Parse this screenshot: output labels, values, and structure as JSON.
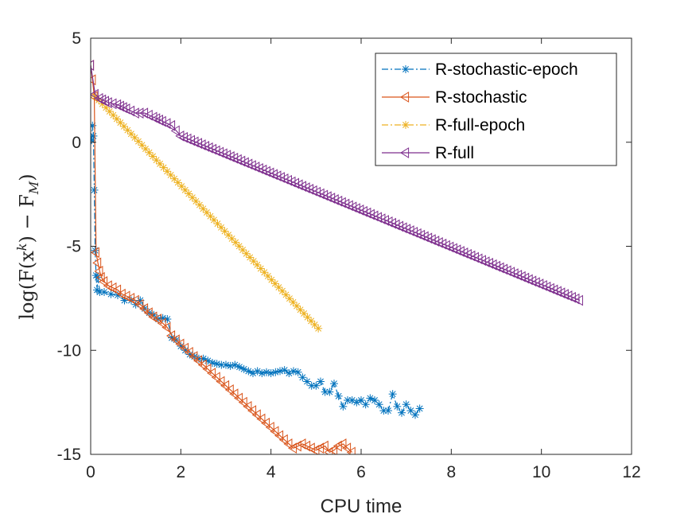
{
  "chart_data": {
    "type": "line",
    "title": "",
    "xlabel": "CPU time",
    "ylabel": "log(F(x^k) − F_M)",
    "ylabel_parts": {
      "lhs": "log(F(x",
      "sup": "k",
      "mid": ") − F",
      "sub": "M",
      "rhs": ")"
    },
    "xlim": [
      0,
      12
    ],
    "ylim": [
      -15,
      5
    ],
    "xticks": [
      0,
      2,
      4,
      6,
      8,
      10,
      12
    ],
    "yticks": [
      5,
      0,
      -5,
      -10,
      -15
    ],
    "xtick_labels": [
      "0",
      "2",
      "4",
      "6",
      "8",
      "10",
      "12"
    ],
    "ytick_labels": [
      "5",
      "0",
      "-5",
      "-10",
      "-15"
    ],
    "grid": false,
    "legend_position": "top-right",
    "series": [
      {
        "name": "R-stochastic-epoch",
        "color": "#0072BD",
        "line_style": "dashdot",
        "marker": "asterisk",
        "points": [
          [
            0.02,
            0.1
          ],
          [
            0.04,
            0.8
          ],
          [
            0.06,
            0.3
          ],
          [
            0.08,
            -2.3
          ],
          [
            0.1,
            -5.2
          ],
          [
            0.12,
            -6.4
          ],
          [
            0.14,
            -7.1
          ],
          [
            0.16,
            -6.5
          ],
          [
            0.2,
            -7.2
          ],
          [
            0.3,
            -7.2
          ],
          [
            0.45,
            -7.3
          ],
          [
            0.6,
            -7.35
          ],
          [
            0.75,
            -7.6
          ],
          [
            0.9,
            -7.6
          ],
          [
            1.0,
            -7.8
          ],
          [
            1.1,
            -7.6
          ],
          [
            1.2,
            -8.0
          ],
          [
            1.3,
            -8.2
          ],
          [
            1.4,
            -8.3
          ],
          [
            1.5,
            -8.5
          ],
          [
            1.6,
            -8.45
          ],
          [
            1.7,
            -8.5
          ],
          [
            1.8,
            -9.4
          ],
          [
            1.9,
            -9.5
          ],
          [
            2.0,
            -9.8
          ],
          [
            2.1,
            -10.0
          ],
          [
            2.2,
            -10.2
          ],
          [
            2.3,
            -10.3
          ],
          [
            2.4,
            -10.4
          ],
          [
            2.5,
            -10.4
          ],
          [
            2.6,
            -10.5
          ],
          [
            2.7,
            -10.6
          ],
          [
            2.8,
            -10.65
          ],
          [
            2.9,
            -10.7
          ],
          [
            3.0,
            -10.7
          ],
          [
            3.1,
            -10.75
          ],
          [
            3.2,
            -10.7
          ],
          [
            3.3,
            -10.8
          ],
          [
            3.4,
            -10.9
          ],
          [
            3.5,
            -11.0
          ],
          [
            3.6,
            -11.1
          ],
          [
            3.7,
            -11.0
          ],
          [
            3.8,
            -11.1
          ],
          [
            3.9,
            -11.05
          ],
          [
            4.0,
            -11.1
          ],
          [
            4.1,
            -11.05
          ],
          [
            4.2,
            -11.0
          ],
          [
            4.3,
            -10.95
          ],
          [
            4.4,
            -11.1
          ],
          [
            4.5,
            -11.0
          ],
          [
            4.6,
            -11.05
          ],
          [
            4.7,
            -11.3
          ],
          [
            4.8,
            -11.5
          ],
          [
            4.9,
            -11.7
          ],
          [
            5.0,
            -11.7
          ],
          [
            5.1,
            -11.5
          ],
          [
            5.2,
            -12.0
          ],
          [
            5.3,
            -12.0
          ],
          [
            5.4,
            -11.6
          ],
          [
            5.5,
            -12.2
          ],
          [
            5.6,
            -12.7
          ],
          [
            5.7,
            -12.4
          ],
          [
            5.8,
            -12.4
          ],
          [
            5.9,
            -12.5
          ],
          [
            6.0,
            -12.4
          ],
          [
            6.1,
            -12.6
          ],
          [
            6.2,
            -12.3
          ],
          [
            6.3,
            -12.4
          ],
          [
            6.4,
            -12.6
          ],
          [
            6.5,
            -12.9
          ],
          [
            6.6,
            -12.9
          ],
          [
            6.7,
            -12.1
          ],
          [
            6.8,
            -12.7
          ],
          [
            6.9,
            -13.0
          ],
          [
            7.0,
            -12.6
          ],
          [
            7.1,
            -12.9
          ],
          [
            7.2,
            -13.1
          ],
          [
            7.3,
            -12.8
          ]
        ]
      },
      {
        "name": "R-stochastic",
        "color": "#D95319",
        "line_style": "solid",
        "marker": "triangle-left",
        "points": [
          [
            0.0,
            3.7
          ],
          [
            0.04,
            3.0
          ],
          [
            0.08,
            2.2
          ],
          [
            0.12,
            -5.3
          ],
          [
            0.16,
            -5.8
          ],
          [
            0.2,
            -6.2
          ],
          [
            0.24,
            -6.5
          ],
          [
            0.3,
            -6.7
          ],
          [
            0.4,
            -6.9
          ],
          [
            0.5,
            -7.0
          ],
          [
            0.6,
            -7.1
          ],
          [
            0.7,
            -7.3
          ],
          [
            0.8,
            -7.4
          ],
          [
            0.9,
            -7.5
          ],
          [
            1.0,
            -7.6
          ],
          [
            1.1,
            -7.8
          ],
          [
            1.2,
            -8.0
          ],
          [
            1.3,
            -8.2
          ],
          [
            1.4,
            -8.4
          ],
          [
            1.5,
            -8.5
          ],
          [
            1.6,
            -8.7
          ],
          [
            1.7,
            -8.9
          ],
          [
            1.8,
            -9.3
          ],
          [
            1.9,
            -9.5
          ],
          [
            2.0,
            -9.7
          ],
          [
            2.1,
            -9.9
          ],
          [
            2.2,
            -10.1
          ],
          [
            2.3,
            -10.3
          ],
          [
            2.4,
            -10.5
          ],
          [
            2.5,
            -10.7
          ],
          [
            2.6,
            -10.9
          ],
          [
            2.7,
            -11.1
          ],
          [
            2.8,
            -11.3
          ],
          [
            2.9,
            -11.5
          ],
          [
            3.0,
            -11.7
          ],
          [
            3.1,
            -11.9
          ],
          [
            3.2,
            -12.1
          ],
          [
            3.3,
            -12.3
          ],
          [
            3.4,
            -12.5
          ],
          [
            3.5,
            -12.7
          ],
          [
            3.6,
            -12.9
          ],
          [
            3.7,
            -13.1
          ],
          [
            3.8,
            -13.3
          ],
          [
            3.9,
            -13.5
          ],
          [
            4.0,
            -13.7
          ],
          [
            4.1,
            -13.9
          ],
          [
            4.2,
            -14.1
          ],
          [
            4.3,
            -14.3
          ],
          [
            4.4,
            -14.5
          ],
          [
            4.5,
            -14.7
          ],
          [
            4.6,
            -14.6
          ],
          [
            4.7,
            -14.5
          ],
          [
            4.8,
            -14.6
          ],
          [
            4.9,
            -14.7
          ],
          [
            5.0,
            -14.8
          ],
          [
            5.1,
            -14.7
          ],
          [
            5.2,
            -14.6
          ],
          [
            5.3,
            -14.9
          ],
          [
            5.4,
            -14.8
          ],
          [
            5.5,
            -14.6
          ],
          [
            5.6,
            -14.5
          ],
          [
            5.7,
            -14.7
          ],
          [
            5.8,
            -14.9
          ]
        ]
      },
      {
        "name": "R-full-epoch",
        "color": "#EDB120",
        "line_style": "dashdot",
        "marker": "asterisk",
        "points": [
          [
            0.1,
            2.2
          ],
          [
            5.05,
            -8.95
          ]
        ]
      },
      {
        "name": "R-full",
        "color": "#7E2F8E",
        "line_style": "solid",
        "marker": "triangle-left",
        "points": [
          [
            0.0,
            3.7
          ],
          [
            0.1,
            2.3
          ],
          [
            0.2,
            2.1
          ],
          [
            0.4,
            1.9
          ],
          [
            0.6,
            1.8
          ],
          [
            0.8,
            1.6
          ],
          [
            1.0,
            1.4
          ],
          [
            1.2,
            1.4
          ],
          [
            1.4,
            1.2
          ],
          [
            1.6,
            1.0
          ],
          [
            1.8,
            0.8
          ],
          [
            2.0,
            0.3
          ],
          [
            10.85,
            -7.6
          ]
        ]
      }
    ]
  }
}
